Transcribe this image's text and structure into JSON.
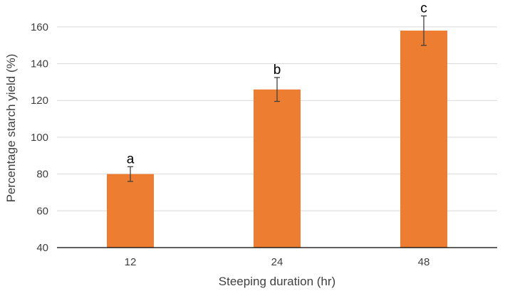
{
  "chart_data": {
    "type": "bar",
    "categories": [
      "12",
      "24",
      "48"
    ],
    "values": [
      80,
      126,
      158
    ],
    "error": [
      4,
      6.5,
      8
    ],
    "significance_labels": [
      "a",
      "b",
      "c"
    ],
    "title": "",
    "xlabel": "Steeping duration (hr)",
    "ylabel": "Percentage starch yield (%)",
    "ylim": [
      40,
      170
    ],
    "yticks": [
      40,
      60,
      80,
      100,
      120,
      140,
      160
    ],
    "grid": true,
    "colors": {
      "bar": "#ED7D31"
    }
  }
}
